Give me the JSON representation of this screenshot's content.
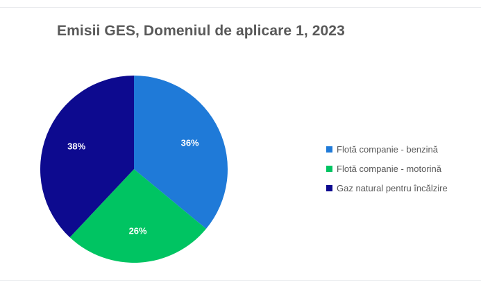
{
  "chart_data": {
    "type": "pie",
    "title": "Emisii GES, Domeniul de aplicare 1, 2023",
    "categories": [
      "Flotă companie - benzină",
      "Flotă companie - motorină",
      "Gaz natural pentru încălzire"
    ],
    "values": [
      36,
      26,
      38
    ],
    "data_labels": [
      "36%",
      "26%",
      "38%"
    ],
    "colors": [
      "#1f7ad8",
      "#00c462",
      "#0d0a8f"
    ],
    "start_angle": "12 o'clock",
    "direction": "clockwise",
    "legend_position": "right"
  }
}
